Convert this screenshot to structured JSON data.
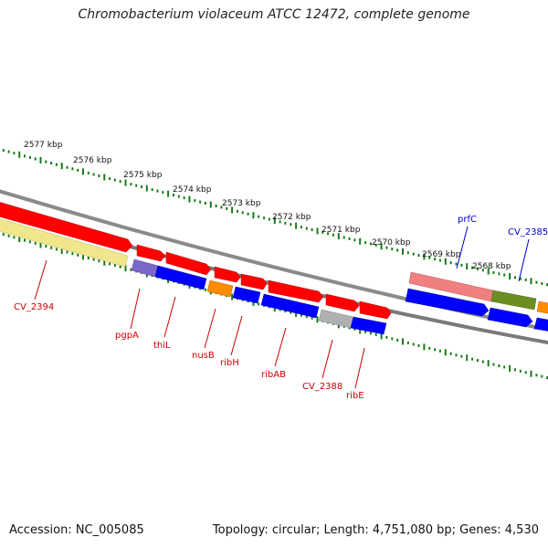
{
  "title": "Chromobacterium violaceum ATCC 12472, complete genome",
  "footer": {
    "accession": "Accession: NC_005085",
    "summary": "Topology: circular; Length: 4,751,080 bp; Genes: 4,530"
  },
  "colors": {
    "backbone": "#808080",
    "tick": "#1a7a1a",
    "label_red": "#cc0000",
    "label_blue": "#0000cc",
    "red": "#ff0000",
    "blue": "#0000ff",
    "orange": "#ff8c00",
    "grey": "#b0b0b0",
    "pale_yellow": "#f0e68c",
    "purple": "#7b68c8",
    "salmon": "#f08080",
    "olive": "#6b8e23"
  },
  "ruler_labels": [
    "2577 kbp",
    "2576 kbp",
    "2575 kbp",
    "2574 kbp",
    "2573 kbp",
    "2572 kbp",
    "2571 kbp",
    "2570 kbp",
    "2569 kbp",
    "2568 kbp"
  ],
  "gene_labels": [
    {
      "name": "CV_2394",
      "color": "red"
    },
    {
      "name": "pgpA",
      "color": "red"
    },
    {
      "name": "thiL",
      "color": "red"
    },
    {
      "name": "nusB",
      "color": "red"
    },
    {
      "name": "ribH",
      "color": "red"
    },
    {
      "name": "ribAB",
      "color": "red"
    },
    {
      "name": "CV_2388",
      "color": "red"
    },
    {
      "name": "ribE",
      "color": "red"
    },
    {
      "name": "prfC",
      "color": "blue"
    },
    {
      "name": "CV_2385",
      "color": "blue"
    }
  ]
}
